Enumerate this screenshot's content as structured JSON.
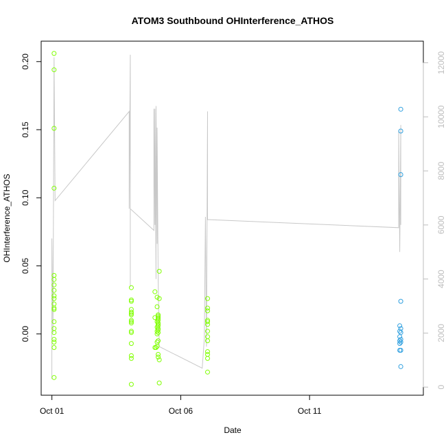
{
  "chart_data": {
    "type": "scatter",
    "title": "ATOM3 Southbound OHInterference_ATHOS",
    "xlabel": "Date",
    "ylabel": "OHInterference_ATHOS",
    "x_range": [
      "2016-09-30T14:00",
      "2016-10-15T10:00"
    ],
    "xlim_labels": [
      "Oct 01",
      "Oct 06",
      "Oct 11"
    ],
    "x_ticks": [
      "2016-10-01",
      "2016-10-06",
      "2016-10-11"
    ],
    "ylim": [
      -0.045,
      0.215
    ],
    "y_ticks": [
      "0.00",
      "0.05",
      "0.10",
      "0.15",
      "0.20"
    ],
    "y_tick_values": [
      0.0,
      0.05,
      0.1,
      0.15,
      0.2
    ],
    "y2lim": [
      -300,
      12800
    ],
    "y2_ticks": [
      "0",
      "2000",
      "4000",
      "6000",
      "8000",
      "10000",
      "12000"
    ],
    "y2_tick_values": [
      0,
      2000,
      4000,
      6000,
      8000,
      10000,
      12000
    ],
    "grid": false,
    "colors": {
      "series_green": "#7FFF00",
      "series_teal": "#2E9FDF",
      "altitude_line": "#c8c8c8",
      "right_axis": "#bdbdbd"
    },
    "series": [
      {
        "color": "#7FFF00",
        "points": [
          [
            "2016-10-01T02:00",
            0.206
          ],
          [
            "2016-10-01T02:00",
            0.194
          ],
          [
            "2016-10-01T02:00",
            0.151
          ],
          [
            "2016-10-01T02:00",
            0.107
          ],
          [
            "2016-10-01T02:00",
            0.043
          ],
          [
            "2016-10-01T02:00",
            0.04
          ],
          [
            "2016-10-01T02:00",
            0.036
          ],
          [
            "2016-10-01T02:00",
            0.032
          ],
          [
            "2016-10-01T02:00",
            0.028
          ],
          [
            "2016-10-01T02:00",
            0.026
          ],
          [
            "2016-10-01T02:00",
            0.022
          ],
          [
            "2016-10-01T02:00",
            0.019
          ],
          [
            "2016-10-01T02:00",
            0.018
          ],
          [
            "2016-10-01T02:00",
            0.009
          ],
          [
            "2016-10-01T02:00",
            0.004
          ],
          [
            "2016-10-01T02:00",
            0.001
          ],
          [
            "2016-10-01T02:00",
            -0.004
          ],
          [
            "2016-10-01T02:00",
            -0.006
          ],
          [
            "2016-10-01T02:00",
            -0.01
          ],
          [
            "2016-10-01T02:00",
            -0.032
          ],
          [
            "2016-10-04T02:00",
            0.034
          ],
          [
            "2016-10-04T02:00",
            0.025
          ],
          [
            "2016-10-04T02:00",
            0.024
          ],
          [
            "2016-10-04T02:00",
            0.018
          ],
          [
            "2016-10-04T02:00",
            0.016
          ],
          [
            "2016-10-04T02:00",
            0.015
          ],
          [
            "2016-10-04T02:00",
            0.014
          ],
          [
            "2016-10-04T02:00",
            0.01
          ],
          [
            "2016-10-04T02:00",
            0.009
          ],
          [
            "2016-10-04T02:00",
            0.008
          ],
          [
            "2016-10-04T02:00",
            0.002
          ],
          [
            "2016-10-04T02:00",
            0.001
          ],
          [
            "2016-10-04T02:00",
            -0.007
          ],
          [
            "2016-10-04T02:00",
            -0.016
          ],
          [
            "2016-10-04T02:00",
            -0.018
          ],
          [
            "2016-10-04T02:00",
            -0.037
          ],
          [
            "2016-10-05T00:00",
            0.031
          ],
          [
            "2016-10-05T02:00",
            0.027
          ],
          [
            "2016-10-05T04:00",
            0.026
          ],
          [
            "2016-10-05T02:00",
            0.02
          ],
          [
            "2016-10-05T03:00",
            0.014
          ],
          [
            "2016-10-05T03:00",
            0.013
          ],
          [
            "2016-10-05T03:00",
            0.012
          ],
          [
            "2016-10-05T00:00",
            0.012
          ],
          [
            "2016-10-05T03:00",
            0.011
          ],
          [
            "2016-10-05T03:00",
            0.01
          ],
          [
            "2016-10-05T02:00",
            0.009
          ],
          [
            "2016-10-05T03:00",
            0.008
          ],
          [
            "2016-10-05T03:00",
            0.007
          ],
          [
            "2016-10-05T03:00",
            0.006
          ],
          [
            "2016-10-05T02:00",
            0.005
          ],
          [
            "2016-10-05T03:00",
            0.004
          ],
          [
            "2016-10-05T03:00",
            0.003
          ],
          [
            "2016-10-05T02:00",
            0.002
          ],
          [
            "2016-10-05T03:00",
            0.001
          ],
          [
            "2016-10-05T02:00",
            0.0
          ],
          [
            "2016-10-05T03:00",
            -0.005
          ],
          [
            "2016-10-05T02:00",
            -0.006
          ],
          [
            "2016-10-05T02:00",
            -0.009
          ],
          [
            "2016-10-05T00:00",
            -0.01
          ],
          [
            "2016-10-05T01:00",
            -0.01
          ],
          [
            "2016-10-05T03:00",
            -0.015
          ],
          [
            "2016-10-05T03:00",
            -0.017
          ],
          [
            "2016-10-05T04:00",
            -0.019
          ],
          [
            "2016-10-05T04:00",
            -0.036
          ],
          [
            "2016-10-05T04:00",
            0.046
          ],
          [
            "2016-10-07T01:00",
            0.026
          ],
          [
            "2016-10-07T01:00",
            0.019
          ],
          [
            "2016-10-07T01:00",
            0.017
          ],
          [
            "2016-10-07T01:00",
            0.01
          ],
          [
            "2016-10-07T01:00",
            0.009
          ],
          [
            "2016-10-07T01:00",
            0.007
          ],
          [
            "2016-10-07T01:00",
            0.002
          ],
          [
            "2016-10-07T01:00",
            -0.002
          ],
          [
            "2016-10-07T01:00",
            -0.005
          ],
          [
            "2016-10-07T01:00",
            -0.013
          ],
          [
            "2016-10-07T01:00",
            -0.015
          ],
          [
            "2016-10-07T01:00",
            -0.018
          ],
          [
            "2016-10-07T01:00",
            -0.028
          ]
        ]
      },
      {
        "color": "#2E9FDF",
        "points": [
          [
            "2016-10-14T13:00",
            0.165
          ],
          [
            "2016-10-14T13:00",
            0.149
          ],
          [
            "2016-10-14T13:00",
            0.117
          ],
          [
            "2016-10-14T13:00",
            0.024
          ],
          [
            "2016-10-14T12:00",
            0.006
          ],
          [
            "2016-10-14T13:00",
            0.004
          ],
          [
            "2016-10-14T12:00",
            0.002
          ],
          [
            "2016-10-14T13:00",
            0.001
          ],
          [
            "2016-10-14T12:00",
            -0.002
          ],
          [
            "2016-10-14T13:00",
            -0.004
          ],
          [
            "2016-10-14T12:00",
            -0.005
          ],
          [
            "2016-10-14T13:00",
            -0.006
          ],
          [
            "2016-10-14T12:00",
            -0.007
          ],
          [
            "2016-10-14T12:00",
            -0.012
          ],
          [
            "2016-10-14T13:00",
            -0.012
          ],
          [
            "2016-10-14T13:00",
            -0.024
          ]
        ]
      }
    ],
    "altitude_track": [
      [
        "2016-10-01T00:00",
        300
      ],
      [
        "2016-10-01T00:00",
        5500
      ],
      [
        "2016-10-01T01:00",
        2000
      ],
      [
        "2016-10-01T02:00",
        12200
      ],
      [
        "2016-10-01T03:00",
        6900
      ],
      [
        "2016-10-04T00:00",
        10200
      ],
      [
        "2016-10-04T00:00",
        6600
      ],
      [
        "2016-10-04T01:00",
        12300
      ],
      [
        "2016-10-04T01:00",
        6700
      ],
      [
        "2016-10-04T01:00",
        3700
      ],
      [
        "2016-10-04T01:00",
        6600
      ],
      [
        "2016-10-04T23:00",
        5800
      ],
      [
        "2016-10-04T23:00",
        10300
      ],
      [
        "2016-10-05T00:00",
        6000
      ],
      [
        "2016-10-05T00:00",
        10300
      ],
      [
        "2016-10-05T01:00",
        4000
      ],
      [
        "2016-10-05T01:00",
        10400
      ],
      [
        "2016-10-05T02:00",
        5300
      ],
      [
        "2016-10-05T02:00",
        9600
      ],
      [
        "2016-10-05T03:00",
        4000
      ],
      [
        "2016-10-05T04:00",
        1500
      ],
      [
        "2016-10-06T20:00",
        700
      ],
      [
        "2016-10-06T22:00",
        1800
      ],
      [
        "2016-10-06T23:00",
        6300
      ],
      [
        "2016-10-07T00:00",
        1500
      ],
      [
        "2016-10-07T01:00",
        10200
      ],
      [
        "2016-10-07T01:00",
        6200
      ],
      [
        "2016-10-14T11:00",
        5900
      ],
      [
        "2016-10-14T11:00",
        9500
      ],
      [
        "2016-10-14T12:00",
        5000
      ],
      [
        "2016-10-14T13:00",
        9700
      ],
      [
        "2016-10-14T13:00",
        6000
      ]
    ]
  }
}
